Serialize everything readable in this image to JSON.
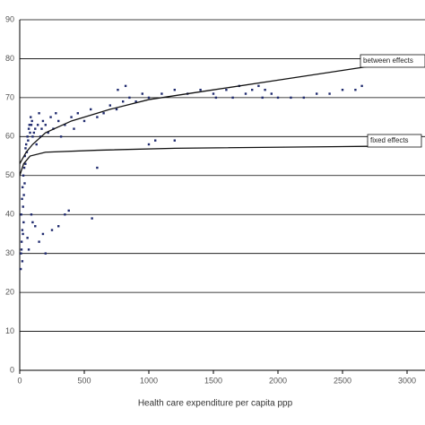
{
  "chart_data": {
    "type": "scatter",
    "xlabel": "Health care expenditure per capita ppp",
    "xlim": [
      0,
      3000
    ],
    "xticks": [
      0,
      500,
      1000,
      1500,
      2000,
      2500,
      3000
    ],
    "ylim": [
      0,
      90
    ],
    "yticks": [
      0,
      10,
      20,
      30,
      40,
      50,
      60,
      70,
      80,
      90
    ],
    "grid": true,
    "color": "#1f2a6e",
    "x": [
      10,
      15,
      20,
      25,
      30,
      12,
      18,
      22,
      28,
      35,
      40,
      45,
      50,
      60,
      70,
      80,
      90,
      100,
      8,
      14,
      20,
      26,
      32,
      38,
      44,
      55,
      65,
      75,
      85,
      95,
      110,
      120,
      130,
      140,
      150,
      160,
      170,
      180,
      200,
      220,
      240,
      260,
      280,
      300,
      100,
      120,
      150,
      180,
      200,
      250,
      300,
      350,
      380,
      560,
      90,
      60,
      70,
      320,
      350,
      400,
      420,
      450,
      500,
      550,
      600,
      650,
      700,
      750,
      800,
      850,
      900,
      950,
      1000,
      600,
      1000,
      1050,
      1200,
      1100,
      1200,
      1300,
      1400,
      1500,
      1600,
      1700,
      1750,
      1800,
      1850,
      1900,
      1950,
      2000,
      2100,
      2200,
      2300,
      2400,
      2500,
      2600,
      2650,
      760,
      820,
      1520,
      1650,
      1880
    ],
    "y": [
      30,
      33,
      28,
      35,
      38,
      40,
      44,
      47,
      50,
      52,
      55,
      57,
      58,
      60,
      62,
      61,
      63,
      60,
      26,
      31,
      36,
      42,
      45,
      48,
      53,
      56,
      59,
      63,
      65,
      64,
      61,
      62,
      58,
      63,
      66,
      60,
      62,
      64,
      63,
      61,
      65,
      62,
      66,
      64,
      38,
      37,
      33,
      35,
      30,
      36,
      37,
      40,
      41,
      39,
      40,
      34,
      31,
      60,
      63,
      65,
      62,
      66,
      64,
      67,
      65,
      66,
      68,
      67,
      69,
      70,
      69,
      71,
      70,
      52,
      58,
      59,
      59,
      71,
      72,
      71,
      72,
      71,
      72,
      73,
      71,
      72,
      73,
      72,
      71,
      70,
      70,
      70,
      71,
      71,
      72,
      72,
      73,
      72,
      73,
      70,
      70,
      70
    ],
    "lines": [
      {
        "label": "between effects",
        "x": [
          0,
          50,
          100,
          200,
          400,
          700,
          1000,
          1500,
          2000,
          2500,
          2700
        ],
        "y": [
          53,
          56,
          58,
          61,
          64,
          67,
          69.5,
          72,
          74.5,
          77,
          78
        ]
      },
      {
        "label": "fixed effects",
        "x": [
          0,
          30,
          80,
          200,
          600,
          1200,
          2700
        ],
        "y": [
          50,
          53,
          55,
          56,
          56.5,
          57,
          57.5
        ]
      }
    ]
  }
}
